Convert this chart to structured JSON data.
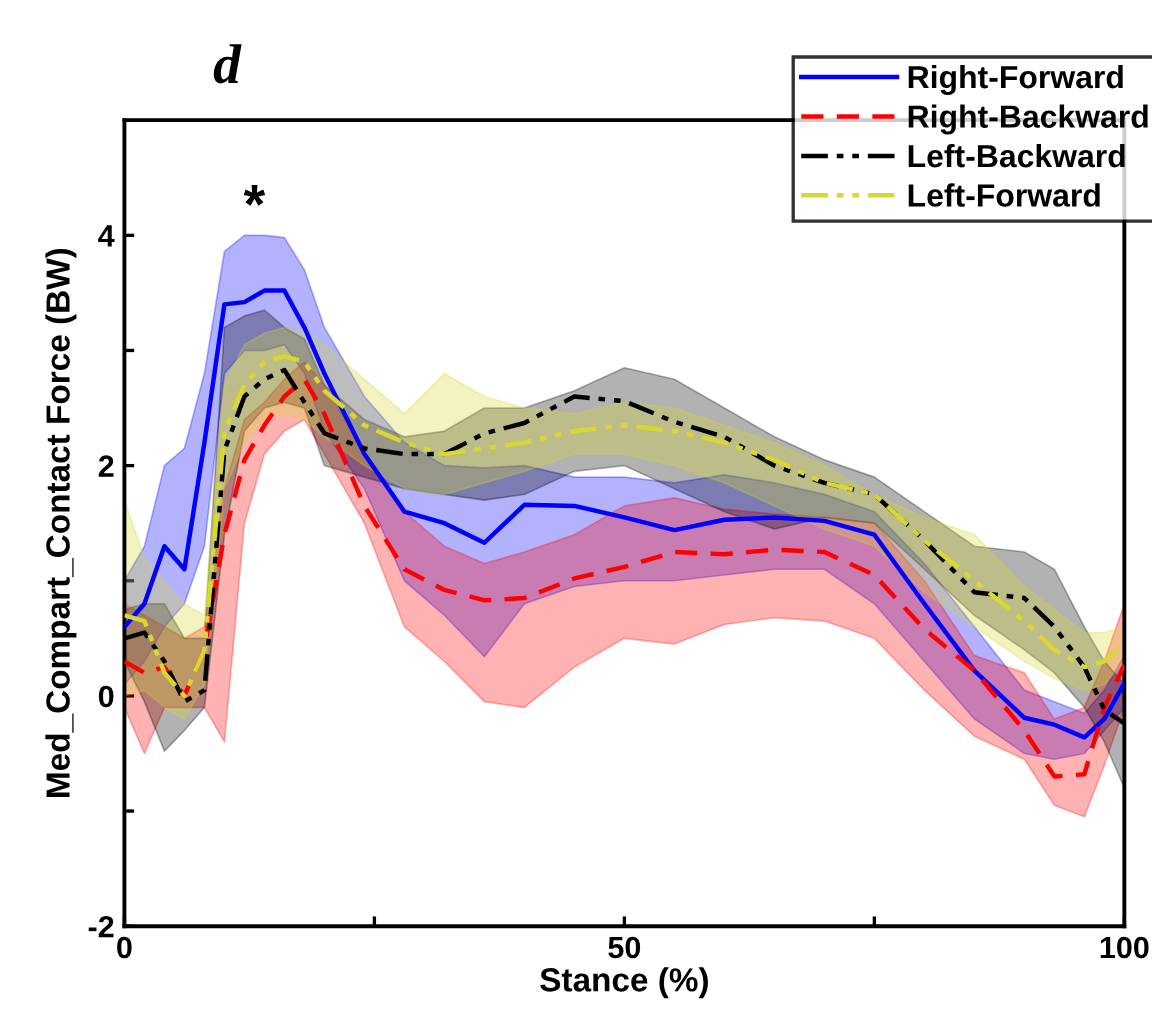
{
  "chart_data": {
    "type": "line",
    "title": "d",
    "xlabel": "Stance (%)",
    "ylabel": "Med_Compart_Contact Force (BW)",
    "annotations": [
      "*"
    ],
    "xlim": [
      0,
      100
    ],
    "ylim": [
      -2,
      5
    ],
    "xticks": [
      0,
      {
        "value": 25,
        "label": null
      },
      50,
      {
        "value": 75,
        "label": null
      },
      100
    ],
    "yticks": [
      -2,
      {
        "value": -1,
        "label": null
      },
      0,
      {
        "value": 1,
        "label": null
      },
      2,
      {
        "value": 3,
        "label": null
      },
      4
    ],
    "grid": false,
    "legend": "top right",
    "marker": "none",
    "series": [
      {
        "name": "Right-Forward",
        "color": "#0000ff",
        "line_style": "solid",
        "x": [
          0,
          2,
          4,
          6,
          8,
          10,
          12,
          14,
          16,
          18,
          20,
          24,
          28,
          32,
          36,
          40,
          45,
          50,
          55,
          60,
          65,
          70,
          75,
          80,
          85,
          90,
          93,
          96,
          98,
          100
        ],
        "values": [
          0.6,
          0.8,
          1.3,
          1.1,
          2.2,
          3.4,
          3.42,
          3.52,
          3.52,
          3.2,
          2.8,
          2.1,
          1.6,
          1.5,
          1.33,
          1.66,
          1.65,
          1.55,
          1.44,
          1.53,
          1.55,
          1.52,
          1.4,
          0.8,
          0.22,
          -0.19,
          -0.25,
          -0.36,
          -0.2,
          0.11
        ],
        "upper": [
          1.0,
          1.3,
          2.0,
          2.15,
          2.8,
          3.86,
          4.0,
          4.0,
          3.98,
          3.7,
          3.2,
          2.6,
          2.2,
          2.0,
          1.98,
          2.0,
          1.9,
          1.9,
          1.85,
          1.92,
          1.85,
          1.75,
          1.6,
          1.15,
          0.6,
          0.05,
          -0.05,
          -0.15,
          0.05,
          0.35
        ],
        "lower": [
          0.1,
          0.3,
          0.6,
          0.8,
          1.3,
          2.8,
          3.0,
          3.0,
          3.05,
          2.8,
          2.3,
          1.8,
          1.0,
          0.7,
          0.34,
          0.8,
          0.95,
          1.0,
          1.0,
          1.05,
          1.1,
          1.1,
          0.8,
          0.3,
          -0.2,
          -0.5,
          -0.55,
          -0.5,
          -0.3,
          -0.1
        ]
      },
      {
        "name": "Right-Backward",
        "color": "#ff0000",
        "line_style": "dashed",
        "x": [
          0,
          2,
          4,
          6,
          8,
          10,
          12,
          14,
          16,
          18,
          20,
          24,
          28,
          32,
          36,
          40,
          45,
          50,
          55,
          60,
          65,
          70,
          75,
          80,
          85,
          90,
          93,
          96,
          98,
          100
        ],
        "values": [
          0.3,
          0.2,
          0.25,
          0.0,
          0.4,
          1.4,
          2.05,
          2.35,
          2.6,
          2.75,
          2.45,
          1.65,
          1.1,
          0.92,
          0.83,
          0.85,
          1.02,
          1.12,
          1.25,
          1.23,
          1.27,
          1.25,
          1.05,
          0.58,
          0.22,
          -0.3,
          -0.7,
          -0.68,
          -0.1,
          0.27
        ],
        "upper": [
          0.8,
          0.7,
          0.6,
          0.5,
          0.6,
          1.8,
          2.4,
          2.55,
          2.75,
          2.9,
          2.7,
          2.1,
          1.6,
          1.3,
          1.15,
          1.25,
          1.4,
          1.65,
          1.72,
          1.62,
          1.58,
          1.55,
          1.5,
          1.0,
          0.35,
          0.2,
          -0.2,
          -0.1,
          0.3,
          0.8
        ],
        "lower": [
          -0.1,
          -0.5,
          -0.1,
          -0.1,
          -0.1,
          -0.4,
          1.5,
          2.1,
          2.3,
          2.4,
          2.1,
          1.5,
          0.6,
          0.3,
          -0.05,
          -0.1,
          0.25,
          0.5,
          0.45,
          0.62,
          0.68,
          0.65,
          0.5,
          0.05,
          -0.35,
          -0.55,
          -0.95,
          -1.05,
          -0.6,
          -0.1
        ]
      },
      {
        "name": "Left-Backward",
        "color": "#000000",
        "line_style": "dashdot",
        "x": [
          0,
          2,
          4,
          6,
          8,
          10,
          12,
          14,
          16,
          18,
          20,
          24,
          28,
          32,
          36,
          40,
          45,
          50,
          55,
          60,
          65,
          70,
          75,
          80,
          85,
          90,
          93,
          96,
          98,
          100
        ],
        "values": [
          0.5,
          0.55,
          0.3,
          -0.05,
          0.05,
          2.13,
          2.6,
          2.75,
          2.83,
          2.55,
          2.28,
          2.15,
          2.1,
          2.1,
          2.28,
          2.37,
          2.6,
          2.56,
          2.38,
          2.25,
          2.0,
          1.85,
          1.75,
          1.35,
          0.9,
          0.85,
          0.6,
          0.25,
          -0.12,
          -0.24
        ],
        "upper": [
          0.75,
          0.8,
          0.8,
          0.5,
          0.5,
          3.2,
          3.3,
          3.35,
          3.2,
          3.1,
          2.7,
          2.4,
          2.25,
          2.3,
          2.5,
          2.5,
          2.65,
          2.85,
          2.75,
          2.5,
          2.25,
          2.05,
          1.9,
          1.6,
          1.3,
          1.25,
          1.1,
          0.6,
          0.3,
          0.1
        ],
        "lower": [
          0.3,
          -0.05,
          -0.48,
          -0.3,
          -0.1,
          1.4,
          2.3,
          2.5,
          2.55,
          2.5,
          2.0,
          1.9,
          1.8,
          1.75,
          1.7,
          1.75,
          1.95,
          2.0,
          1.8,
          1.6,
          1.45,
          1.55,
          1.5,
          1.1,
          0.7,
          0.4,
          0.2,
          -0.1,
          -0.4,
          -0.8
        ]
      },
      {
        "name": "Left-Forward",
        "color": "#d8d830",
        "line_style": "dashdot",
        "x": [
          0,
          2,
          4,
          6,
          8,
          10,
          12,
          14,
          16,
          18,
          20,
          24,
          28,
          32,
          36,
          40,
          45,
          50,
          55,
          60,
          65,
          70,
          75,
          80,
          85,
          90,
          93,
          96,
          98,
          100
        ],
        "values": [
          0.7,
          0.65,
          0.2,
          0.0,
          0.4,
          2.3,
          2.7,
          2.9,
          2.95,
          2.9,
          2.65,
          2.35,
          2.2,
          2.1,
          2.15,
          2.2,
          2.3,
          2.35,
          2.3,
          2.2,
          2.05,
          1.85,
          1.75,
          1.35,
          1.0,
          0.65,
          0.4,
          0.25,
          0.3,
          0.45
        ],
        "upper": [
          1.7,
          1.2,
          1.0,
          0.8,
          0.7,
          2.7,
          3.05,
          3.15,
          3.2,
          3.15,
          3.05,
          2.75,
          2.45,
          2.8,
          2.6,
          2.5,
          2.45,
          2.55,
          2.5,
          2.35,
          2.2,
          2.0,
          1.75,
          1.55,
          1.4,
          0.95,
          0.75,
          0.55,
          0.55,
          0.6
        ],
        "lower": [
          0.0,
          0.05,
          -0.1,
          -0.2,
          0.1,
          1.8,
          2.2,
          2.4,
          2.45,
          2.4,
          2.25,
          2.0,
          1.8,
          1.75,
          1.85,
          1.95,
          2.1,
          2.1,
          2.0,
          1.85,
          1.65,
          1.45,
          1.3,
          0.9,
          0.6,
          0.3,
          0.15,
          0.05,
          0.1,
          0.3
        ]
      }
    ]
  }
}
